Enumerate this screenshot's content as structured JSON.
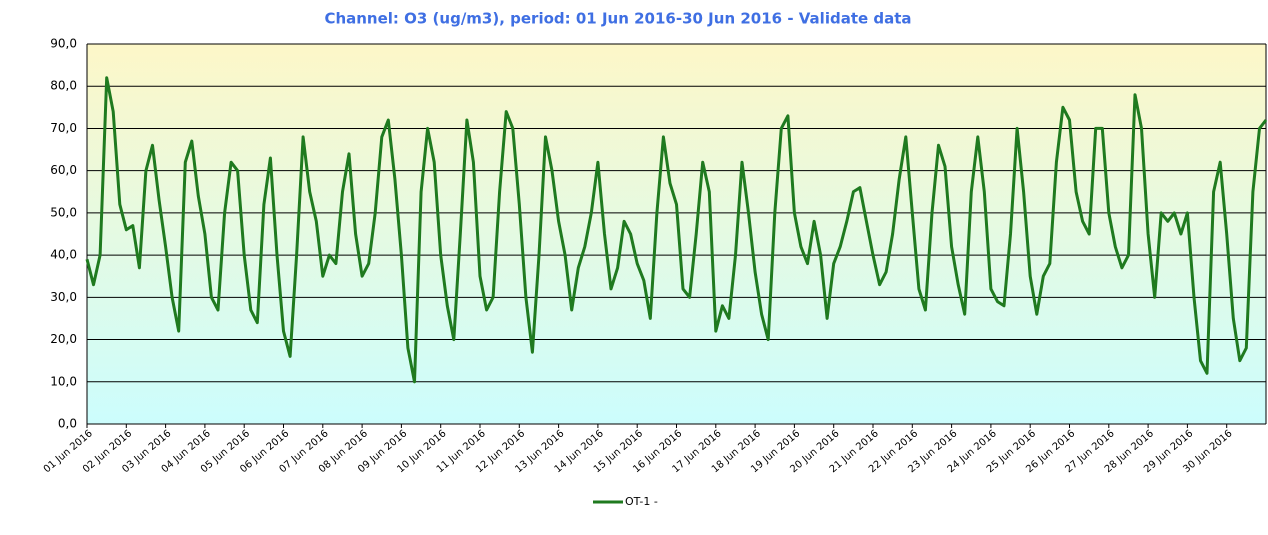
{
  "chart_data": {
    "type": "line",
    "title": "Channel: O3 (ug/m3), period: 01 Jun 2016-30 Jun 2016 - Validate data",
    "x": [
      0,
      4,
      8,
      12,
      16,
      20,
      24,
      28,
      32,
      36,
      40,
      44,
      48,
      52,
      56,
      60,
      64,
      68,
      72,
      76,
      80,
      84,
      88,
      92,
      96,
      100,
      104,
      108,
      112,
      116,
      120,
      124,
      128,
      132,
      136,
      140,
      144,
      148,
      152,
      156,
      160,
      164,
      168,
      172,
      176,
      180,
      184,
      188,
      192,
      196,
      200,
      204,
      208,
      212,
      216,
      220,
      224,
      228,
      232,
      236,
      240,
      244,
      248,
      252,
      256,
      260,
      264,
      268,
      272,
      276,
      280,
      284,
      288,
      292,
      296,
      300,
      304,
      308,
      312,
      316,
      320,
      324,
      328,
      332,
      336,
      340,
      344,
      348,
      352,
      356,
      360,
      364,
      368,
      372,
      376,
      380,
      384,
      388,
      392,
      396,
      400,
      404,
      408,
      412,
      416,
      420,
      424,
      428,
      432,
      436,
      440,
      444,
      448,
      452,
      456,
      460,
      464,
      468,
      472,
      476,
      480,
      484,
      488,
      492,
      496,
      500,
      504,
      508,
      512,
      516,
      520,
      524,
      528,
      532,
      536,
      540,
      544,
      548,
      552,
      556,
      560,
      564,
      568,
      572,
      576,
      580,
      584,
      588,
      592,
      596,
      600,
      604,
      608,
      612,
      616,
      620,
      624,
      628,
      632,
      636,
      640,
      644,
      648,
      652,
      656,
      660,
      664,
      668,
      672,
      676,
      680,
      684,
      688,
      692,
      696,
      700,
      704,
      708,
      712,
      716,
      720
    ],
    "series": [
      {
        "name": "OT-1 -",
        "color": "#1f7a1f",
        "values": [
          39,
          33,
          40,
          82,
          74,
          52,
          46,
          47,
          37,
          60,
          66,
          53,
          42,
          30,
          22,
          62,
          67,
          54,
          45,
          30,
          27,
          50,
          62,
          60,
          40,
          27,
          24,
          52,
          63,
          40,
          22,
          16,
          40,
          68,
          55,
          48,
          35,
          40,
          38,
          55,
          64,
          45,
          35,
          38,
          50,
          68,
          72,
          58,
          40,
          18,
          10,
          55,
          70,
          62,
          40,
          28,
          20,
          45,
          72,
          62,
          35,
          27,
          30,
          55,
          74,
          70,
          52,
          30,
          17,
          40,
          68,
          60,
          48,
          40,
          27,
          37,
          42,
          50,
          62,
          45,
          32,
          37,
          48,
          45,
          38,
          34,
          25,
          50,
          68,
          57,
          52,
          32,
          30,
          45,
          62,
          55,
          22,
          28,
          25,
          40,
          62,
          50,
          36,
          26,
          20,
          50,
          70,
          73,
          50,
          42,
          38,
          48,
          40,
          25,
          38,
          42,
          48,
          55,
          56,
          48,
          40,
          33,
          36,
          45,
          58,
          68,
          50,
          32,
          27,
          50,
          66,
          61,
          42,
          33,
          26,
          55,
          68,
          55,
          32,
          29,
          28,
          45,
          70,
          55,
          35,
          26,
          35,
          38,
          62,
          75,
          72,
          55,
          48,
          45,
          70,
          70,
          50,
          42,
          37,
          40,
          78,
          70,
          45,
          30,
          50,
          48,
          50,
          45,
          50,
          30,
          15,
          12,
          55,
          62,
          45,
          25,
          15,
          18,
          55,
          70,
          72
        ]
      }
    ],
    "xlim": [
      0,
      720
    ],
    "xticks": [
      {
        "value": 0,
        "label": "01 Jun 2016"
      },
      {
        "value": 24,
        "label": "02 Jun 2016"
      },
      {
        "value": 48,
        "label": "03 Jun 2016"
      },
      {
        "value": 72,
        "label": "04 Jun 2016"
      },
      {
        "value": 96,
        "label": "05 Jun 2016"
      },
      {
        "value": 120,
        "label": "06 Jun 2016"
      },
      {
        "value": 144,
        "label": "07 Jun 2016"
      },
      {
        "value": 168,
        "label": "08 Jun 2016"
      },
      {
        "value": 192,
        "label": "09 Jun 2016"
      },
      {
        "value": 216,
        "label": "10 Jun 2016"
      },
      {
        "value": 240,
        "label": "11 Jun 2016"
      },
      {
        "value": 264,
        "label": "12 Jun 2016"
      },
      {
        "value": 288,
        "label": "13 Jun 2016"
      },
      {
        "value": 312,
        "label": "14 Jun 2016"
      },
      {
        "value": 336,
        "label": "15 Jun 2016"
      },
      {
        "value": 360,
        "label": "16 Jun 2016"
      },
      {
        "value": 384,
        "label": "17 Jun 2016"
      },
      {
        "value": 408,
        "label": "18 Jun 2016"
      },
      {
        "value": 432,
        "label": "19 Jun 2016"
      },
      {
        "value": 456,
        "label": "20 Jun 2016"
      },
      {
        "value": 480,
        "label": "21 Jun 2016"
      },
      {
        "value": 504,
        "label": "22 Jun 2016"
      },
      {
        "value": 528,
        "label": "23 Jun 2016"
      },
      {
        "value": 552,
        "label": "24 Jun 2016"
      },
      {
        "value": 576,
        "label": "25 Jun 2016"
      },
      {
        "value": 600,
        "label": "26 Jun 2016"
      },
      {
        "value": 624,
        "label": "27 Jun 2016"
      },
      {
        "value": 648,
        "label": "28 Jun 2016"
      },
      {
        "value": 672,
        "label": "29 Jun 2016"
      },
      {
        "value": 696,
        "label": "30 Jun 2016"
      }
    ],
    "ylim": [
      0,
      90
    ],
    "yticks": [
      {
        "value": 0,
        "label": "0,0"
      },
      {
        "value": 10,
        "label": "10,0"
      },
      {
        "value": 20,
        "label": "20,0"
      },
      {
        "value": 30,
        "label": "30,0"
      },
      {
        "value": 40,
        "label": "40,0"
      },
      {
        "value": 50,
        "label": "50,0"
      },
      {
        "value": 60,
        "label": "60,0"
      },
      {
        "value": 70,
        "label": "70,0"
      },
      {
        "value": 80,
        "label": "80,0"
      },
      {
        "value": 90,
        "label": "90,0"
      }
    ],
    "grid": true,
    "legend": "bottom"
  }
}
